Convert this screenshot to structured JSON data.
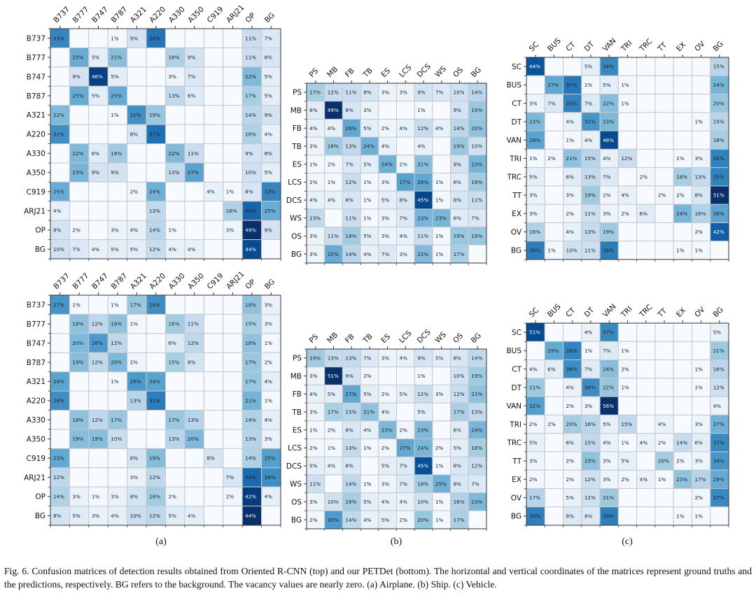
{
  "caption": "Fig. 6.  Confusion matrices of detection results obtained from Oriented R-CNN (top) and our PETDet (bottom). The horizontal and vertical coordinates of the matrices represent ground truths and the predictions, respectively. BG refers to the background. The vacancy values are nearly zero. (a) Airplane. (b) Ship. (c) Vehicle.",
  "subfigure_labels": [
    "(a)",
    "(b)",
    "(c)"
  ],
  "chart_data": [
    {
      "type": "heatmap",
      "title": "Airplane - Oriented R-CNN (top)",
      "panel": "a",
      "position": "top",
      "value_format": "percent",
      "colormap": "Blues",
      "categories": [
        "B737",
        "B777",
        "B747",
        "B787",
        "A321",
        "A220",
        "A330",
        "A350",
        "C919",
        "ARJ21",
        "OP",
        "BG"
      ],
      "values": [
        [
          33,
          null,
          null,
          1,
          9,
          36,
          null,
          null,
          null,
          null,
          11,
          7
        ],
        [
          null,
          25,
          5,
          21,
          null,
          null,
          16,
          9,
          null,
          null,
          11,
          8
        ],
        [
          null,
          9,
          46,
          5,
          null,
          null,
          3,
          7,
          null,
          null,
          22,
          5
        ],
        [
          null,
          25,
          5,
          25,
          null,
          null,
          13,
          6,
          null,
          null,
          17,
          5
        ],
        [
          22,
          null,
          null,
          1,
          31,
          19,
          null,
          null,
          null,
          null,
          14,
          9
        ],
        [
          31,
          null,
          null,
          null,
          8,
          37,
          null,
          null,
          null,
          null,
          16,
          4
        ],
        [
          null,
          22,
          6,
          18,
          null,
          null,
          22,
          11,
          null,
          null,
          9,
          8
        ],
        [
          null,
          23,
          9,
          9,
          null,
          null,
          13,
          27,
          null,
          null,
          10,
          5
        ],
        [
          25,
          null,
          null,
          null,
          2,
          24,
          null,
          null,
          4,
          1,
          8,
          33
        ],
        [
          4,
          null,
          null,
          null,
          null,
          13,
          null,
          null,
          null,
          16,
          39,
          25
        ],
        [
          9,
          2,
          null,
          3,
          4,
          14,
          1,
          null,
          null,
          3,
          49,
          9
        ],
        [
          10,
          7,
          4,
          5,
          5,
          12,
          4,
          4,
          null,
          null,
          44,
          null
        ]
      ]
    },
    {
      "type": "heatmap",
      "title": "Ship - Oriented R-CNN (top)",
      "panel": "b",
      "position": "top",
      "value_format": "percent",
      "colormap": "Blues",
      "categories": [
        "PS",
        "MB",
        "FB",
        "TB",
        "ES",
        "LCS",
        "DCS",
        "WS",
        "OS",
        "BG"
      ],
      "values": [
        [
          17,
          12,
          11,
          8,
          3,
          3,
          9,
          7,
          10,
          14
        ],
        [
          6,
          49,
          8,
          3,
          null,
          null,
          1,
          null,
          9,
          19
        ],
        [
          4,
          4,
          26,
          5,
          2,
          4,
          12,
          4,
          14,
          20
        ],
        [
          3,
          18,
          13,
          24,
          4,
          null,
          4,
          null,
          19,
          10
        ],
        [
          1,
          2,
          7,
          5,
          24,
          2,
          21,
          null,
          9,
          23
        ],
        [
          2,
          1,
          12,
          1,
          3,
          27,
          26,
          1,
          6,
          18
        ],
        [
          4,
          4,
          8,
          1,
          5,
          8,
          45,
          1,
          8,
          11
        ],
        [
          13,
          null,
          11,
          1,
          3,
          7,
          23,
          23,
          6,
          7
        ],
        [
          3,
          11,
          18,
          5,
          3,
          4,
          11,
          1,
          19,
          19
        ],
        [
          3,
          25,
          14,
          4,
          7,
          3,
          22,
          1,
          17,
          null
        ]
      ]
    },
    {
      "type": "heatmap",
      "title": "Vehicle - Oriented R-CNN (top)",
      "panel": "c",
      "position": "top",
      "value_format": "percent",
      "colormap": "Blues",
      "categories": [
        "SC",
        "BUS",
        "CT",
        "DT",
        "VAN",
        "TRI",
        "TRC",
        "TT",
        "EX",
        "OV",
        "BG"
      ],
      "values": [
        [
          44,
          null,
          null,
          5,
          34,
          null,
          null,
          null,
          null,
          null,
          15
        ],
        [
          null,
          27,
          37,
          1,
          5,
          1,
          null,
          null,
          null,
          null,
          24
        ],
        [
          3,
          7,
          35,
          7,
          22,
          1,
          null,
          null,
          null,
          null,
          20
        ],
        [
          23,
          null,
          4,
          31,
          23,
          null,
          null,
          null,
          null,
          1,
          15
        ],
        [
          28,
          null,
          1,
          4,
          46,
          null,
          null,
          null,
          null,
          null,
          18
        ],
        [
          1,
          2,
          21,
          15,
          4,
          12,
          null,
          null,
          1,
          3,
          35
        ],
        [
          5,
          null,
          6,
          13,
          7,
          null,
          2,
          null,
          18,
          13,
          35
        ],
        [
          3,
          null,
          3,
          19,
          2,
          4,
          null,
          2,
          2,
          8,
          51
        ],
        [
          3,
          null,
          2,
          11,
          3,
          2,
          6,
          null,
          24,
          16,
          28
        ],
        [
          16,
          null,
          4,
          13,
          19,
          null,
          null,
          null,
          null,
          2,
          42
        ],
        [
          36,
          1,
          10,
          11,
          36,
          null,
          null,
          null,
          1,
          1,
          null
        ]
      ]
    },
    {
      "type": "heatmap",
      "title": "Airplane - PETDet (bottom)",
      "panel": "a",
      "position": "bottom",
      "value_format": "percent",
      "colormap": "Blues",
      "categories": [
        "B737",
        "B777",
        "B747",
        "B787",
        "A321",
        "A220",
        "A330",
        "A350",
        "C919",
        "ARJ21",
        "OP",
        "BG"
      ],
      "values": [
        [
          27,
          1,
          null,
          1,
          17,
          28,
          null,
          null,
          null,
          null,
          18,
          3
        ],
        [
          null,
          18,
          12,
          18,
          1,
          null,
          16,
          11,
          null,
          null,
          15,
          3
        ],
        [
          null,
          20,
          26,
          12,
          null,
          null,
          6,
          12,
          null,
          null,
          18,
          1
        ],
        [
          null,
          19,
          12,
          20,
          2,
          null,
          15,
          8,
          null,
          null,
          17,
          2
        ],
        [
          24,
          null,
          null,
          1,
          26,
          24,
          null,
          null,
          null,
          null,
          17,
          4
        ],
        [
          28,
          null,
          null,
          null,
          13,
          31,
          null,
          null,
          null,
          null,
          21,
          1
        ],
        [
          null,
          18,
          12,
          17,
          null,
          null,
          17,
          13,
          null,
          null,
          14,
          4
        ],
        [
          null,
          19,
          19,
          10,
          null,
          null,
          13,
          20,
          null,
          null,
          13,
          3
        ],
        [
          23,
          null,
          null,
          null,
          8,
          19,
          null,
          null,
          8,
          null,
          14,
          25
        ],
        [
          12,
          null,
          null,
          null,
          3,
          12,
          null,
          null,
          null,
          7,
          34,
          28
        ],
        [
          14,
          3,
          1,
          3,
          8,
          16,
          2,
          null,
          null,
          2,
          42,
          4
        ],
        [
          8,
          5,
          3,
          4,
          10,
          12,
          5,
          4,
          null,
          null,
          44,
          null
        ]
      ]
    },
    {
      "type": "heatmap",
      "title": "Ship - PETDet (bottom)",
      "panel": "b",
      "position": "bottom",
      "value_format": "percent",
      "colormap": "Blues",
      "categories": [
        "PS",
        "MB",
        "FB",
        "TB",
        "ES",
        "LCS",
        "DCS",
        "WS",
        "OS",
        "BG"
      ],
      "values": [
        [
          19,
          13,
          13,
          7,
          3,
          4,
          9,
          5,
          8,
          14
        ],
        [
          3,
          51,
          9,
          2,
          null,
          null,
          1,
          null,
          10,
          19
        ],
        [
          4,
          5,
          27,
          5,
          2,
          5,
          12,
          3,
          12,
          21
        ],
        [
          3,
          17,
          15,
          21,
          4,
          null,
          5,
          null,
          17,
          13
        ],
        [
          1,
          2,
          8,
          4,
          23,
          2,
          23,
          null,
          6,
          24
        ],
        [
          2,
          1,
          13,
          1,
          2,
          27,
          24,
          2,
          5,
          18
        ],
        [
          5,
          4,
          8,
          null,
          5,
          7,
          45,
          1,
          8,
          12
        ],
        [
          11,
          null,
          14,
          1,
          3,
          7,
          18,
          25,
          8,
          7
        ],
        [
          3,
          10,
          18,
          5,
          4,
          4,
          10,
          1,
          16,
          23
        ],
        [
          2,
          30,
          14,
          4,
          5,
          2,
          20,
          1,
          17,
          null
        ]
      ]
    },
    {
      "type": "heatmap",
      "title": "Vehicle - PETDet (bottom)",
      "panel": "c",
      "position": "bottom",
      "value_format": "percent",
      "colormap": "Blues",
      "categories": [
        "SC",
        "BUS",
        "CT",
        "DT",
        "VAN",
        "TRI",
        "TRC",
        "TT",
        "EX",
        "OV",
        "BG"
      ],
      "values": [
        [
          51,
          null,
          null,
          4,
          37,
          null,
          null,
          null,
          null,
          null,
          5
        ],
        [
          null,
          29,
          38,
          1,
          7,
          1,
          null,
          null,
          null,
          null,
          21
        ],
        [
          4,
          6,
          36,
          7,
          24,
          2,
          null,
          null,
          null,
          1,
          16
        ],
        [
          21,
          null,
          4,
          36,
          22,
          1,
          null,
          null,
          null,
          1,
          12
        ],
        [
          32,
          null,
          2,
          3,
          56,
          null,
          null,
          null,
          null,
          null,
          4
        ],
        [
          2,
          2,
          20,
          16,
          5,
          15,
          null,
          4,
          null,
          3,
          27
        ],
        [
          5,
          null,
          6,
          15,
          4,
          1,
          4,
          2,
          14,
          6,
          37
        ],
        [
          3,
          null,
          2,
          23,
          3,
          5,
          null,
          20,
          2,
          3,
          34
        ],
        [
          2,
          null,
          2,
          12,
          3,
          2,
          4,
          1,
          23,
          17,
          29
        ],
        [
          17,
          null,
          5,
          12,
          21,
          null,
          null,
          null,
          null,
          2,
          37
        ],
        [
          39,
          null,
          8,
          8,
          39,
          null,
          null,
          null,
          1,
          1,
          null
        ]
      ]
    }
  ]
}
